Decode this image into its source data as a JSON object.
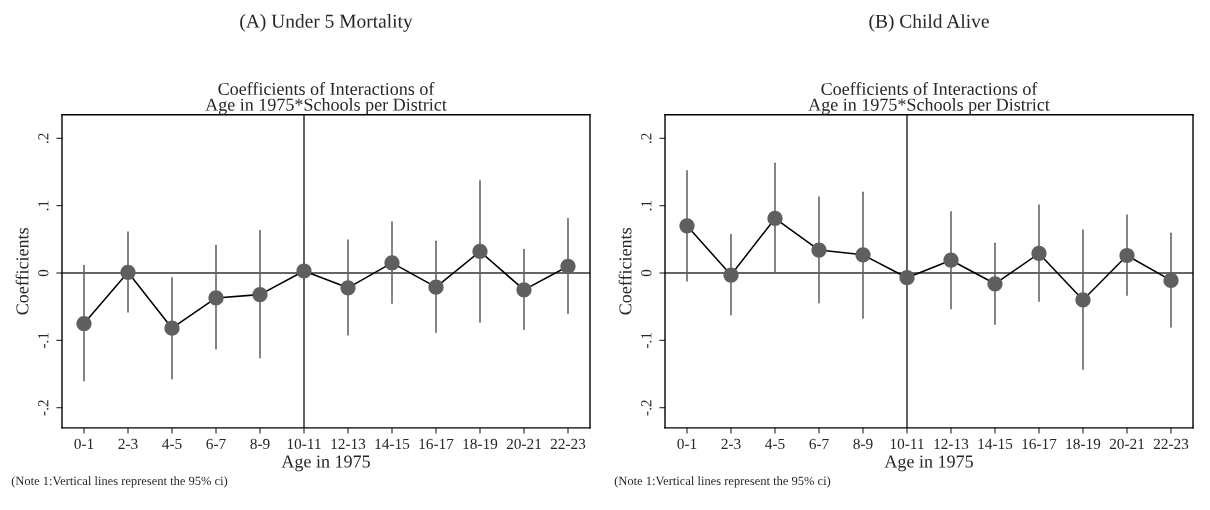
{
  "chart_data": [
    {
      "type": "line",
      "title": "(A) Under 5 Mortality",
      "subtitle": "Coefficients of Interactions of\nAge in 1975*Schools per District",
      "xlabel": "Age in 1975",
      "ylabel": "Coefficients",
      "categories": [
        "0-1",
        "2-3",
        "4-5",
        "6-7",
        "8-9",
        "10-11",
        "12-13",
        "14-15",
        "16-17",
        "18-19",
        "20-21",
        "22-23"
      ],
      "series": [
        {
          "color": "#5f5f5f",
          "values": [
            -0.075,
            0.001,
            -0.082,
            -0.037,
            -0.032,
            0.003,
            -0.022,
            0.015,
            -0.021,
            0.032,
            -0.025,
            0.01
          ],
          "errors": [
            [
              -0.16,
              0.011
            ],
            [
              -0.058,
              0.061
            ],
            [
              -0.157,
              -0.007
            ],
            [
              -0.113,
              0.041
            ],
            [
              -0.126,
              0.063
            ],
            [
              -0.075,
              0.08
            ],
            [
              -0.092,
              0.049
            ],
            [
              -0.045,
              0.076
            ],
            [
              -0.088,
              0.047
            ],
            [
              -0.073,
              0.137
            ],
            [
              -0.084,
              0.035
            ],
            [
              -0.06,
              0.081
            ]
          ]
        }
      ],
      "ylim": [
        -0.23,
        0.235
      ],
      "yticks": [
        {
          "value": -0.2,
          "label": "-.2"
        },
        {
          "value": -0.1,
          "label": "-.1"
        },
        0,
        {
          "value": 0.1,
          "label": ".1"
        },
        {
          "value": 0.2,
          "label": ".2"
        }
      ],
      "ref_lines": [
        {
          "axis": "y",
          "value": 0
        },
        {
          "axis": "x",
          "value": "10-11"
        }
      ],
      "marker": "circle",
      "line_style": "solid",
      "grid": false,
      "legend": false,
      "annotations": [
        "(Note 1:Vertical lines represent the 95% ci)"
      ]
    },
    {
      "type": "line",
      "title": "(B) Child Alive",
      "subtitle": "Coefficients of Interactions of\nAge in 1975*Schools per District",
      "xlabel": "Age in 1975",
      "ylabel": "Coefficients",
      "categories": [
        "0-1",
        "2-3",
        "4-5",
        "6-7",
        "8-9",
        "10-11",
        "12-13",
        "14-15",
        "16-17",
        "18-19",
        "20-21",
        "22-23"
      ],
      "series": [
        {
          "color": "#5f5f5f",
          "values": [
            0.07,
            -0.003,
            0.081,
            0.034,
            0.027,
            -0.007,
            0.019,
            -0.016,
            0.029,
            -0.04,
            0.026,
            -0.011
          ],
          "errors": [
            [
              -0.012,
              0.152
            ],
            [
              -0.062,
              0.057
            ],
            [
              0.0,
              0.163
            ],
            [
              -0.044,
              0.113
            ],
            [
              -0.067,
              0.12
            ],
            null,
            [
              -0.053,
              0.091
            ],
            [
              -0.076,
              0.044
            ],
            [
              -0.042,
              0.101
            ],
            [
              -0.143,
              0.064
            ],
            [
              -0.033,
              0.086
            ],
            [
              -0.08,
              0.059
            ]
          ]
        }
      ],
      "ylim": [
        -0.23,
        0.235
      ],
      "yticks": [
        {
          "value": -0.2,
          "label": "-.2"
        },
        {
          "value": -0.1,
          "label": "-.1"
        },
        0,
        {
          "value": 0.1,
          "label": ".1"
        },
        {
          "value": 0.2,
          "label": ".2"
        }
      ],
      "ref_lines": [
        {
          "axis": "y",
          "value": 0
        },
        {
          "axis": "x",
          "value": "10-11"
        }
      ],
      "marker": "circle",
      "line_style": "solid",
      "grid": false,
      "legend": false,
      "annotations": [
        "(Note 1:Vertical lines represent the 95% ci)"
      ]
    }
  ]
}
